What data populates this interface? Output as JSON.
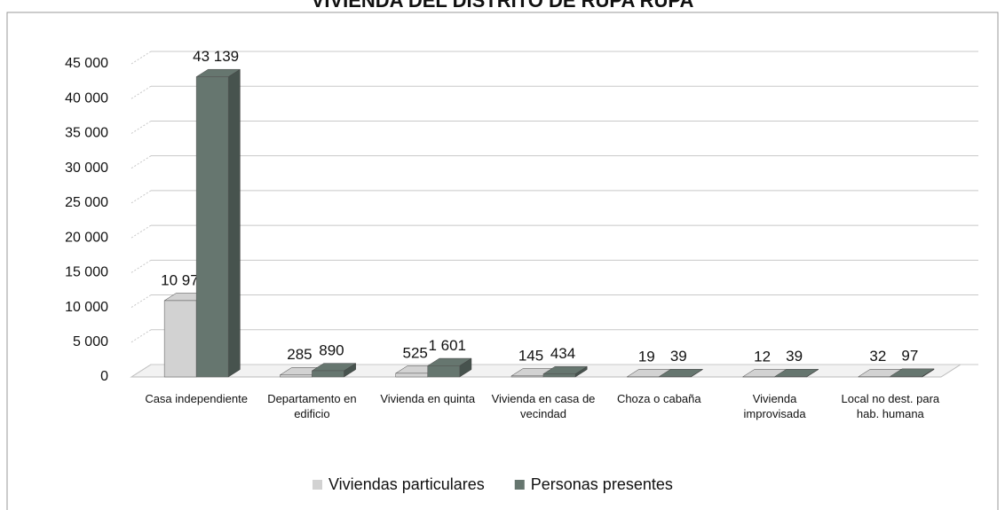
{
  "chart_data": {
    "type": "bar",
    "title": "VIVIENDA DEL DISTRITO DE RUPA RUPA",
    "categories": [
      "Casa independiente",
      "Departamento en edificio",
      "Vivienda en quinta",
      "Vivienda en casa de vecindad",
      "Choza o cabaña",
      "Vivienda improvisada",
      "Local no dest. para hab. humana"
    ],
    "series": [
      {
        "name": "Viviendas particulares",
        "color": "#d2d2d2",
        "values": [
          10972,
          285,
          525,
          145,
          19,
          12,
          32
        ],
        "value_labels": [
          "10 972",
          "285",
          "525",
          "145",
          "19",
          "12",
          "32"
        ]
      },
      {
        "name": "Personas presentes",
        "color": "#66766f",
        "values": [
          43139,
          890,
          1601,
          434,
          39,
          39,
          97
        ],
        "value_labels": [
          "43 139",
          "890",
          "1 601",
          "434",
          "39",
          "39",
          "97"
        ]
      }
    ],
    "ylim": [
      0,
      45000
    ],
    "yticks": [
      0,
      {
        "value": 5000,
        "label": "5 000"
      },
      {
        "value": 10000,
        "label": "10 000"
      },
      {
        "value": 15000,
        "label": "15 000"
      },
      {
        "value": 20000,
        "label": "20 000"
      },
      {
        "value": 25000,
        "label": "25 000"
      },
      {
        "value": 30000,
        "label": "30 000"
      },
      {
        "value": 35000,
        "label": "35 000"
      },
      {
        "value": 40000,
        "label": "40 000"
      },
      {
        "value": 45000,
        "label": "45 000"
      }
    ],
    "grid": true,
    "legend": "bottom"
  }
}
